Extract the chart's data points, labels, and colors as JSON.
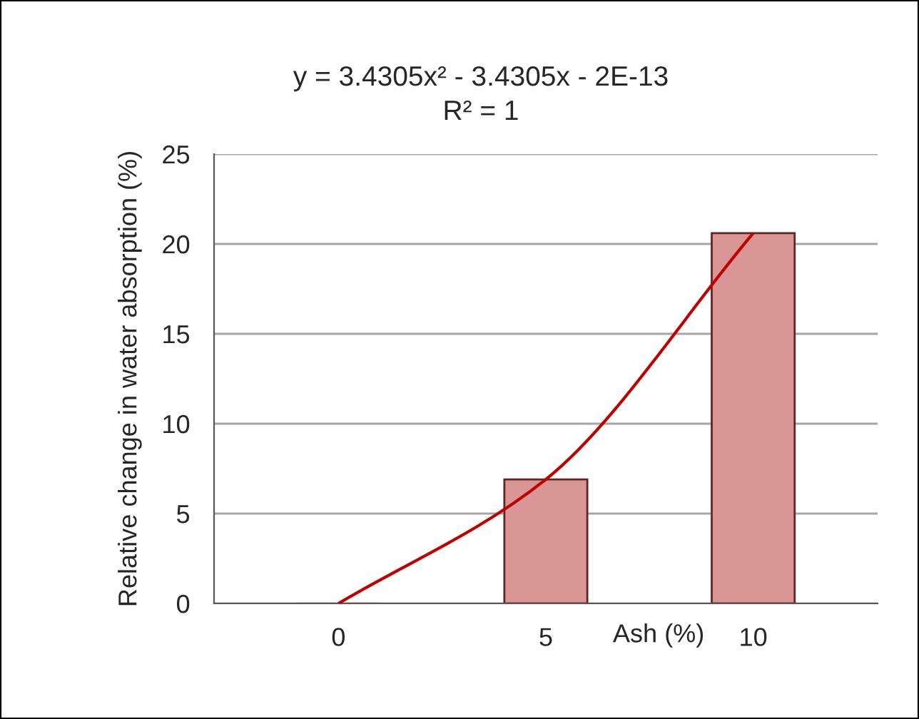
{
  "chart_data": {
    "type": "bar",
    "categories": [
      "0",
      "5",
      "10"
    ],
    "xlabel": "Ash (%)",
    "ylabel": "Relative change in water absorption (%)",
    "ylim": [
      0,
      25
    ],
    "yticks": [
      0,
      5,
      10,
      15,
      20,
      25
    ],
    "grid": "y",
    "legend": false,
    "series": [
      {
        "type": "bar",
        "color": "#d99694",
        "values": [
          0,
          6.9,
          20.6
        ]
      },
      {
        "type": "line",
        "color": "#c00000",
        "values": [
          0,
          6.9,
          20.6
        ]
      }
    ],
    "annotations": [
      "y = 3.4305x² - 3.4305x - 2E-13",
      "R² = 1"
    ]
  }
}
